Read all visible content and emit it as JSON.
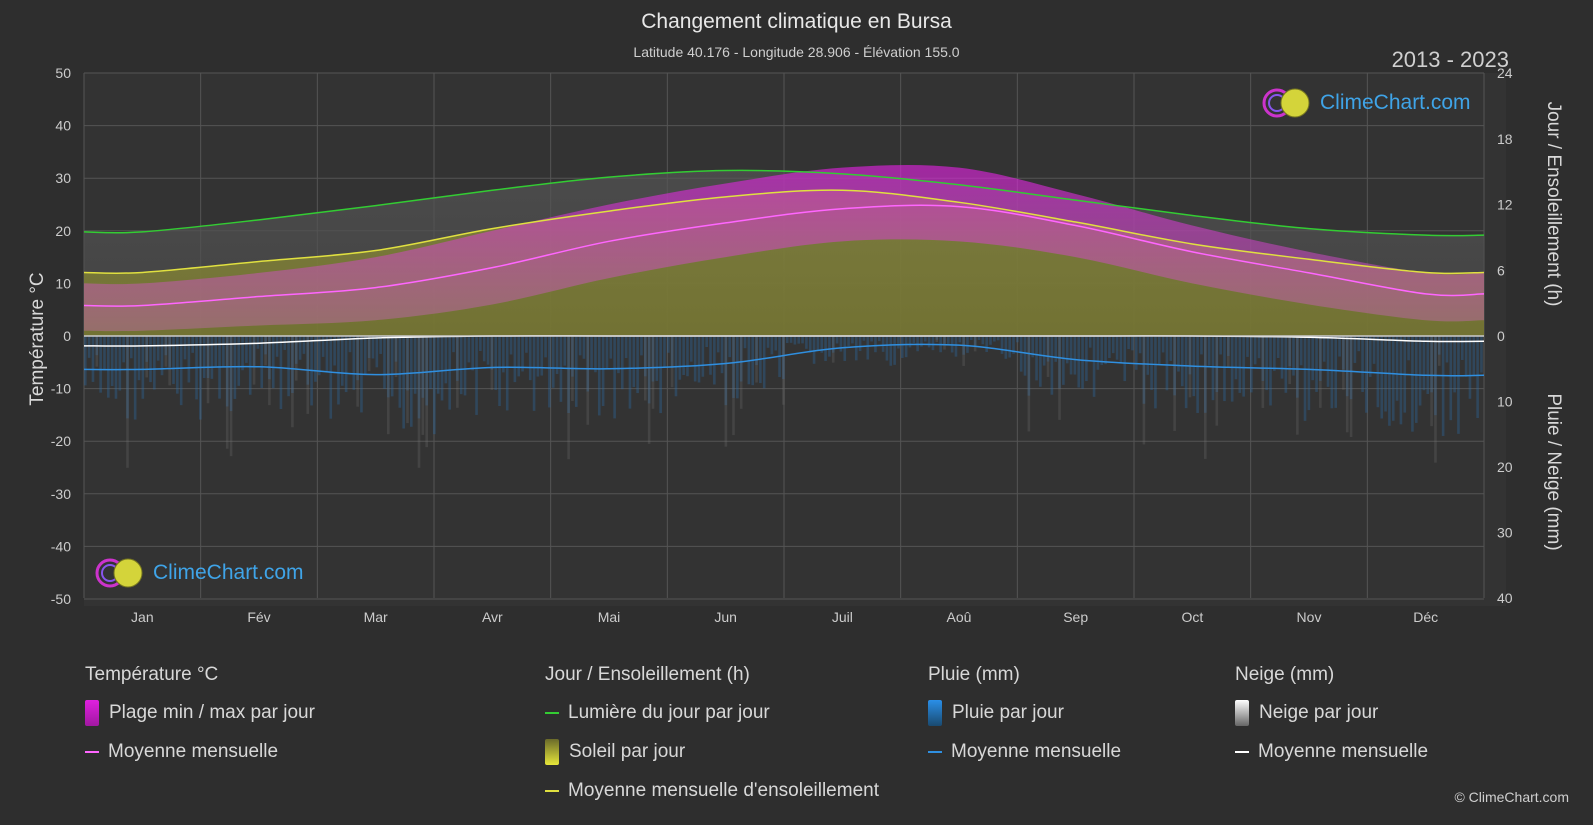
{
  "header": {
    "title": "Changement climatique en Bursa",
    "subtitle": "Latitude 40.176 - Longitude 28.906 - Élévation 155.0",
    "years": "2013 - 2023"
  },
  "axes": {
    "left_label": "Température °C",
    "right_top_label": "Jour / Ensoleillement (h)",
    "right_bottom_label": "Pluie / Neige (mm)",
    "left_ticks": [
      "50",
      "40",
      "30",
      "20",
      "10",
      "0",
      "-10",
      "-20",
      "-30",
      "-40",
      "-50"
    ],
    "right_top_ticks": [
      "24",
      "18",
      "12",
      "6",
      "0"
    ],
    "right_bottom_ticks": [
      "10",
      "20",
      "30",
      "40"
    ]
  },
  "chart_data": {
    "type": "area",
    "categories": [
      "Jan",
      "Fév",
      "Mar",
      "Avr",
      "Mai",
      "Jun",
      "Juil",
      "Aoû",
      "Sep",
      "Oct",
      "Nov",
      "Déc"
    ],
    "temp_ylim": [
      -50,
      50
    ],
    "sun_ylim_h": [
      0,
      24
    ],
    "precip_ylim_mm": [
      0,
      40
    ],
    "series": [
      {
        "name": "Lumière du jour par jour",
        "axis": "hours",
        "color": "#33cc33",
        "values": [
          9.5,
          10.6,
          11.9,
          13.3,
          14.5,
          15.1,
          14.8,
          13.8,
          12.4,
          11.0,
          9.8,
          9.2
        ]
      },
      {
        "name": "Moyenne mensuelle d'ensoleillement",
        "axis": "hours",
        "color": "#e0e040",
        "values": [
          5.8,
          6.8,
          7.8,
          9.8,
          11.4,
          12.7,
          13.3,
          12.2,
          10.4,
          8.4,
          7.0,
          5.8
        ]
      },
      {
        "name": "Température moyenne mensuelle",
        "axis": "temp",
        "color": "#ff66ff",
        "values": [
          5.8,
          7.5,
          9.2,
          13.0,
          18.0,
          21.5,
          24.2,
          24.6,
          21.0,
          16.0,
          12.0,
          8.0
        ]
      },
      {
        "name": "Pluie moyenne mensuelle",
        "axis": "precip",
        "color": "#2f8fe0",
        "values": [
          5.1,
          4.7,
          5.9,
          4.8,
          5.0,
          4.2,
          1.8,
          1.4,
          3.6,
          4.6,
          5.1,
          6.0
        ]
      },
      {
        "name": "Neige moyenne mensuelle",
        "axis": "precip",
        "color": "#ffffff",
        "values": [
          1.5,
          1.1,
          0.3,
          0.0,
          0.0,
          0.0,
          0.0,
          0.0,
          0.0,
          0.0,
          0.2,
          0.8
        ]
      }
    ],
    "temp_range": {
      "name": "Plage min / max par jour",
      "min": [
        1,
        2,
        3,
        6,
        11,
        15,
        18,
        18,
        15,
        10,
        6,
        3
      ],
      "max": [
        10,
        12,
        15,
        20,
        25,
        29,
        32,
        32,
        27,
        21,
        16,
        12
      ]
    },
    "grid": true
  },
  "legend": {
    "groups": [
      {
        "title": "Température °C",
        "items": [
          {
            "label": "Plage min / max par jour",
            "kind": "block",
            "color": "#d61ad6"
          },
          {
            "label": "Moyenne mensuelle",
            "kind": "line",
            "color": "#ff66ff"
          }
        ]
      },
      {
        "title": "Jour / Ensoleillement (h)",
        "items": [
          {
            "label": "Lumière du jour par jour",
            "kind": "line",
            "color": "#33cc33"
          },
          {
            "label": "Soleil par jour",
            "kind": "block",
            "color": "#c8c838"
          },
          {
            "label": "Moyenne mensuelle d'ensoleillement",
            "kind": "line",
            "color": "#e0e040"
          }
        ]
      },
      {
        "title": "Pluie (mm)",
        "items": [
          {
            "label": "Pluie par jour",
            "kind": "block",
            "color": "#1f7fd0"
          },
          {
            "label": "Moyenne mensuelle",
            "kind": "line",
            "color": "#2f8fe0"
          }
        ]
      },
      {
        "title": "Neige (mm)",
        "items": [
          {
            "label": "Neige par jour",
            "kind": "block",
            "color": "#dddddd"
          },
          {
            "label": "Moyenne mensuelle",
            "kind": "line",
            "color": "#ffffff"
          }
        ]
      }
    ]
  },
  "logo": {
    "text": "ClimeChart.com"
  },
  "copyright": "© ClimeChart.com"
}
